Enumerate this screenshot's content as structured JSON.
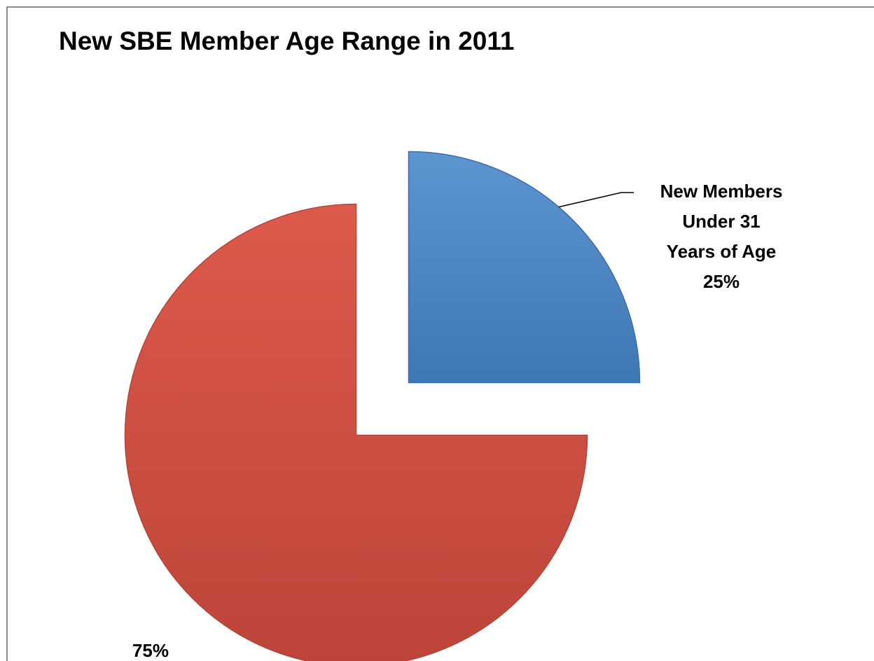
{
  "chart_data": {
    "type": "pie",
    "title": "New SBE Member Age Range in 2011",
    "categories": [
      "New Members Under 31 Years of Age",
      ""
    ],
    "values": [
      25,
      75
    ],
    "series": [
      {
        "values": [
          25,
          75
        ]
      }
    ],
    "colors": [
      "#4f88c7",
      "#cf4f43"
    ],
    "labels": [
      {
        "lines": [
          "New Members",
          "Under 31",
          "Years of Age",
          "25%"
        ]
      },
      {
        "lines": [
          "75%"
        ]
      }
    ],
    "exploded": true,
    "legend": "none"
  }
}
